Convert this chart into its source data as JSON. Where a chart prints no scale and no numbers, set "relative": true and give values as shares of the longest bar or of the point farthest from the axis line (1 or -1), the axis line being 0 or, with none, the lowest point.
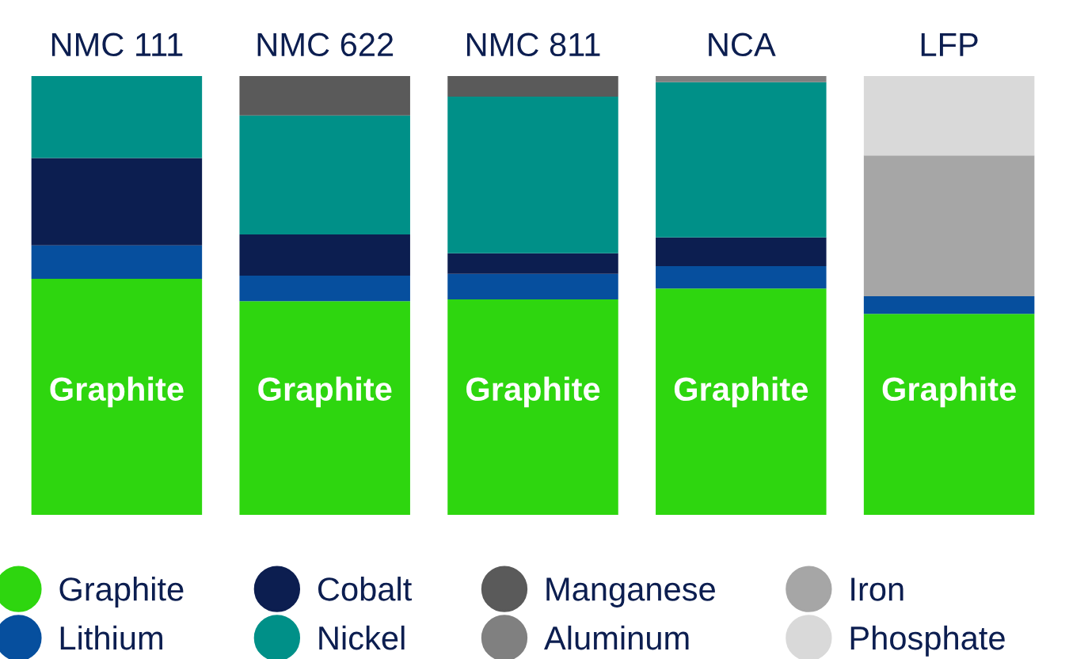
{
  "chart_data": {
    "type": "bar",
    "stacked": true,
    "relative": true,
    "legend": "bottom",
    "marker": "circle",
    "categories": [
      "NMC 111",
      "NMC 622",
      "NMC 811",
      "NCA",
      "LFP"
    ],
    "series": [
      {
        "name": "Graphite",
        "color": "#2ed60f",
        "values": [
          0.538,
          0.487,
          0.491,
          0.516,
          0.458
        ]
      },
      {
        "name": "Lithium",
        "color": "#064f9e",
        "values": [
          0.076,
          0.058,
          0.058,
          0.051,
          0.04
        ]
      },
      {
        "name": "Cobalt",
        "color": "#0c1e50",
        "values": [
          0.199,
          0.094,
          0.047,
          0.065,
          null
        ]
      },
      {
        "name": "Nickel",
        "color": "#009088",
        "values": [
          0.187,
          0.271,
          0.357,
          0.354,
          null
        ]
      },
      {
        "name": "Manganese",
        "color": "#5a5a5a",
        "values": [
          null,
          0.09,
          0.047,
          null,
          null
        ]
      },
      {
        "name": "Aluminum",
        "color": "#808080",
        "values": [
          null,
          null,
          null,
          0.014,
          null
        ]
      },
      {
        "name": "Iron",
        "color": "#a6a6a6",
        "values": [
          null,
          null,
          null,
          null,
          0.321
        ]
      },
      {
        "name": "Phosphate",
        "color": "#d9d9d9",
        "values": [
          null,
          null,
          null,
          null,
          0.181
        ]
      }
    ],
    "annotations": [
      "Graphite",
      "Graphite",
      "Graphite",
      "Graphite",
      "Graphite"
    ]
  }
}
